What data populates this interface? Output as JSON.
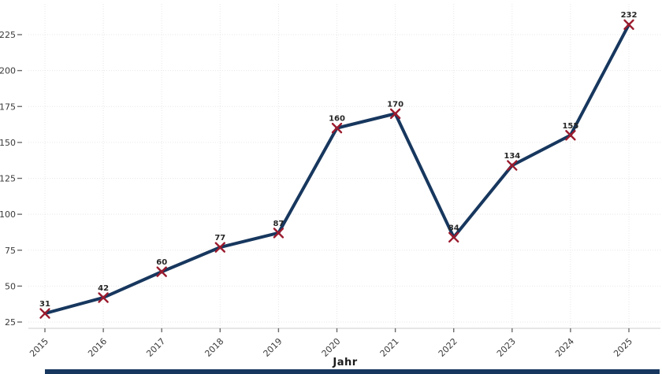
{
  "chart_data": {
    "type": "line",
    "categories": [
      "2015",
      "2016",
      "2017",
      "2018",
      "2019",
      "2020",
      "2021",
      "2022",
      "2023",
      "2024",
      "2025"
    ],
    "values": [
      31,
      42,
      60,
      77,
      87,
      160,
      170,
      84,
      134,
      155,
      232
    ],
    "title": "",
    "xlabel": "Jahr",
    "ylabel": "",
    "ylim": [
      25,
      225
    ],
    "yticks": [
      25,
      50,
      75,
      100,
      125,
      150,
      175,
      200,
      225
    ],
    "grid": true,
    "legend": "none",
    "marker": "x",
    "point_labels": [
      "31",
      "42",
      "60",
      "77",
      "87",
      "160",
      "170",
      "84",
      "134",
      "155",
      "232"
    ]
  },
  "chart_style": {
    "line_color": "#17375e",
    "marker_color": "#9b1b2e",
    "point_label_color": "#262626",
    "tick_label_color": "#3a3a3a",
    "grid_color": "#e7e7e7",
    "axis_line_color": "#cccccc",
    "tick_mark_color": "#6b6b6b",
    "bottom_bar_color": "#17375e",
    "background": "#ffffff"
  }
}
